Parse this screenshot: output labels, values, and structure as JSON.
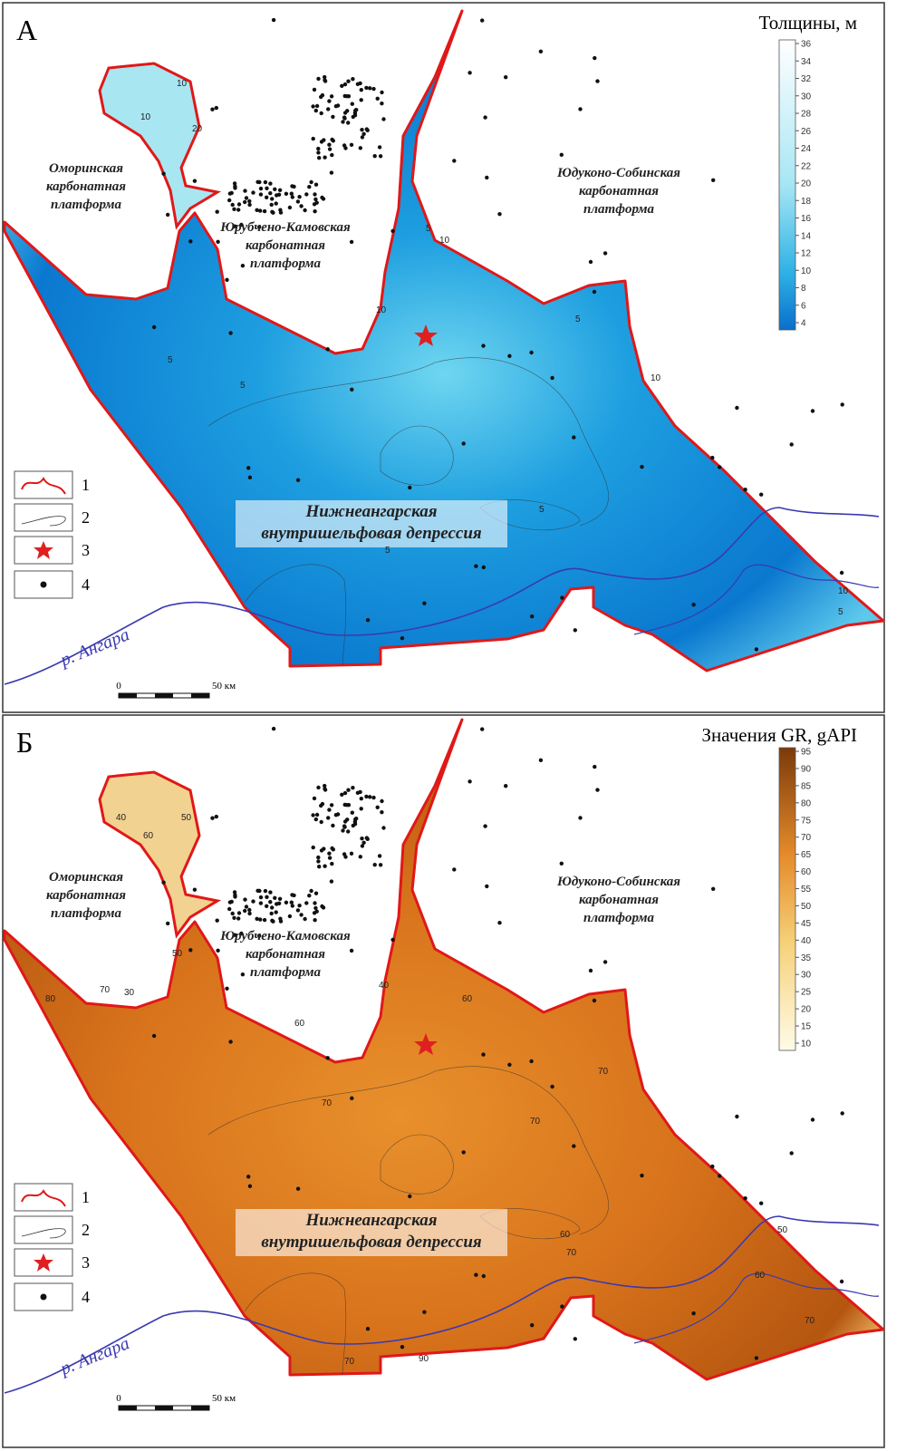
{
  "panels": [
    {
      "letter": "А",
      "legend_title": "Толщины, м",
      "colorbar_ticks": [
        4,
        6,
        8,
        10,
        12,
        14,
        16,
        18,
        20,
        22,
        24,
        26,
        28,
        30,
        32,
        34,
        36
      ],
      "regions": [
        [
          "Оморинская",
          "карбонатная",
          "платформа"
        ],
        [
          "Юрубчено-Камовская",
          "карбонатная",
          "платформа"
        ],
        [
          "Юдуконо-Собинская",
          "карбонатная",
          "платформа"
        ],
        [
          "Нижнеангарская",
          "внутришельфовая депрессия"
        ]
      ],
      "contour_labels": [
        "10",
        "20",
        "10",
        "5",
        "10",
        "10",
        "5",
        "5",
        "5",
        "5",
        "5",
        "10",
        "10",
        "5"
      ]
    },
    {
      "letter": "Б",
      "legend_title": "Значения GR, gAPI",
      "colorbar_ticks": [
        10,
        15,
        20,
        25,
        30,
        35,
        40,
        45,
        50,
        55,
        60,
        65,
        70,
        75,
        80,
        85,
        90,
        95
      ],
      "regions": [
        [
          "Оморинская",
          "карбонатная",
          "платформа"
        ],
        [
          "Юрубчено-Камовская",
          "карбонатная",
          "платформа"
        ],
        [
          "Юдуконо-Собинская",
          "карбонатная",
          "платформа"
        ],
        [
          "Нижнеангарская",
          "внутришельфовая депрессия"
        ]
      ],
      "contour_labels": [
        "40",
        "50",
        "60",
        "80",
        "70",
        "50",
        "30",
        "60",
        "40",
        "60",
        "70",
        "70",
        "70",
        "60",
        "70",
        "50",
        "60",
        "70",
        "90",
        "70"
      ]
    }
  ],
  "legend": [
    "1",
    "2",
    "3",
    "4"
  ],
  "river": "р. Ангара",
  "scale": [
    "0",
    "50 км"
  ]
}
